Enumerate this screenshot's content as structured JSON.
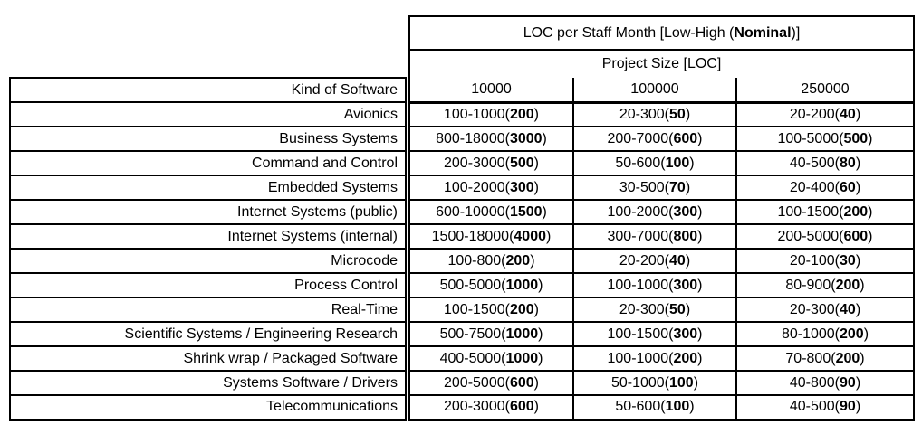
{
  "table": {
    "title_prefix": "LOC per Staff Month [Low-High (",
    "title_bold": "Nominal",
    "title_suffix": ")]",
    "subtitle": "Project Size [LOC]",
    "kind_header": "Kind of Software",
    "size_columns": [
      "10000",
      "100000",
      "250000"
    ],
    "rows": [
      {
        "kind": "Avionics",
        "cells": [
          {
            "range": "100-1000",
            "nominal": "200"
          },
          {
            "range": "20-300",
            "nominal": "50"
          },
          {
            "range": "20-200",
            "nominal": "40"
          }
        ]
      },
      {
        "kind": "Business Systems",
        "cells": [
          {
            "range": "800-18000",
            "nominal": "3000"
          },
          {
            "range": "200-7000",
            "nominal": "600"
          },
          {
            "range": "100-5000",
            "nominal": "500"
          }
        ]
      },
      {
        "kind": "Command and Control",
        "cells": [
          {
            "range": "200-3000",
            "nominal": "500"
          },
          {
            "range": "50-600",
            "nominal": "100"
          },
          {
            "range": "40-500",
            "nominal": "80"
          }
        ]
      },
      {
        "kind": "Embedded Systems",
        "cells": [
          {
            "range": "100-2000",
            "nominal": "300"
          },
          {
            "range": "30-500",
            "nominal": "70"
          },
          {
            "range": "20-400",
            "nominal": "60"
          }
        ]
      },
      {
        "kind": "Internet Systems (public)",
        "cells": [
          {
            "range": "600-10000",
            "nominal": "1500"
          },
          {
            "range": "100-2000",
            "nominal": "300"
          },
          {
            "range": "100-1500",
            "nominal": "200"
          }
        ]
      },
      {
        "kind": "Internet Systems (internal)",
        "cells": [
          {
            "range": "1500-18000",
            "nominal": "4000"
          },
          {
            "range": "300-7000",
            "nominal": "800"
          },
          {
            "range": "200-5000",
            "nominal": "600"
          }
        ]
      },
      {
        "kind": "Microcode",
        "cells": [
          {
            "range": "100-800",
            "nominal": "200"
          },
          {
            "range": "20-200",
            "nominal": "40"
          },
          {
            "range": "20-100",
            "nominal": "30"
          }
        ]
      },
      {
        "kind": "Process Control",
        "cells": [
          {
            "range": "500-5000",
            "nominal": "1000"
          },
          {
            "range": "100-1000",
            "nominal": "300"
          },
          {
            "range": "80-900",
            "nominal": "200"
          }
        ]
      },
      {
        "kind": "Real-Time",
        "cells": [
          {
            "range": "100-1500",
            "nominal": "200"
          },
          {
            "range": "20-300",
            "nominal": "50"
          },
          {
            "range": "20-300",
            "nominal": "40"
          }
        ]
      },
      {
        "kind": "Scientific Systems / Engineering Research",
        "cells": [
          {
            "range": "500-7500",
            "nominal": "1000"
          },
          {
            "range": "100-1500",
            "nominal": "300"
          },
          {
            "range": "80-1000",
            "nominal": "200"
          }
        ]
      },
      {
        "kind": "Shrink wrap / Packaged Software",
        "cells": [
          {
            "range": "400-5000",
            "nominal": "1000"
          },
          {
            "range": "100-1000",
            "nominal": "200"
          },
          {
            "range": "70-800",
            "nominal": "200"
          }
        ]
      },
      {
        "kind": "Systems Software / Drivers",
        "cells": [
          {
            "range": "200-5000",
            "nominal": "600"
          },
          {
            "range": "50-1000",
            "nominal": "100"
          },
          {
            "range": "40-800",
            "nominal": "90"
          }
        ]
      },
      {
        "kind": "Telecommunications",
        "cells": [
          {
            "range": "200-3000",
            "nominal": "600"
          },
          {
            "range": "50-600",
            "nominal": "100"
          },
          {
            "range": "40-500",
            "nominal": "90"
          }
        ]
      }
    ]
  }
}
